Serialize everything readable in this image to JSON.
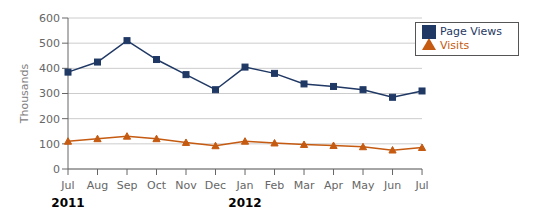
{
  "chart_data": {
    "type": "line",
    "categories": [
      "Jul",
      "Aug",
      "Sep",
      "Oct",
      "Nov",
      "Dec",
      "Jan",
      "Feb",
      "Mar",
      "Apr",
      "May",
      "Jun",
      "Jul"
    ],
    "series": [
      {
        "name": "Page Views",
        "color": "#1F3864",
        "marker": "square",
        "values": [
          385,
          425,
          510,
          435,
          375,
          315,
          405,
          380,
          338,
          328,
          315,
          285,
          310
        ]
      },
      {
        "name": "Visits",
        "color": "#C55A11",
        "marker": "triangle",
        "values": [
          110,
          120,
          130,
          120,
          105,
          92,
          110,
          103,
          97,
          93,
          88,
          75,
          85
        ]
      }
    ],
    "ylim": [
      0,
      600
    ],
    "yticks": [
      0,
      100,
      200,
      300,
      400,
      500,
      600
    ],
    "ylabel": "Thousands",
    "grid": "y",
    "legend": "upper right",
    "annotations": [
      {
        "text": "2011",
        "index": 0
      },
      {
        "text": "2012",
        "index": 6
      }
    ]
  }
}
